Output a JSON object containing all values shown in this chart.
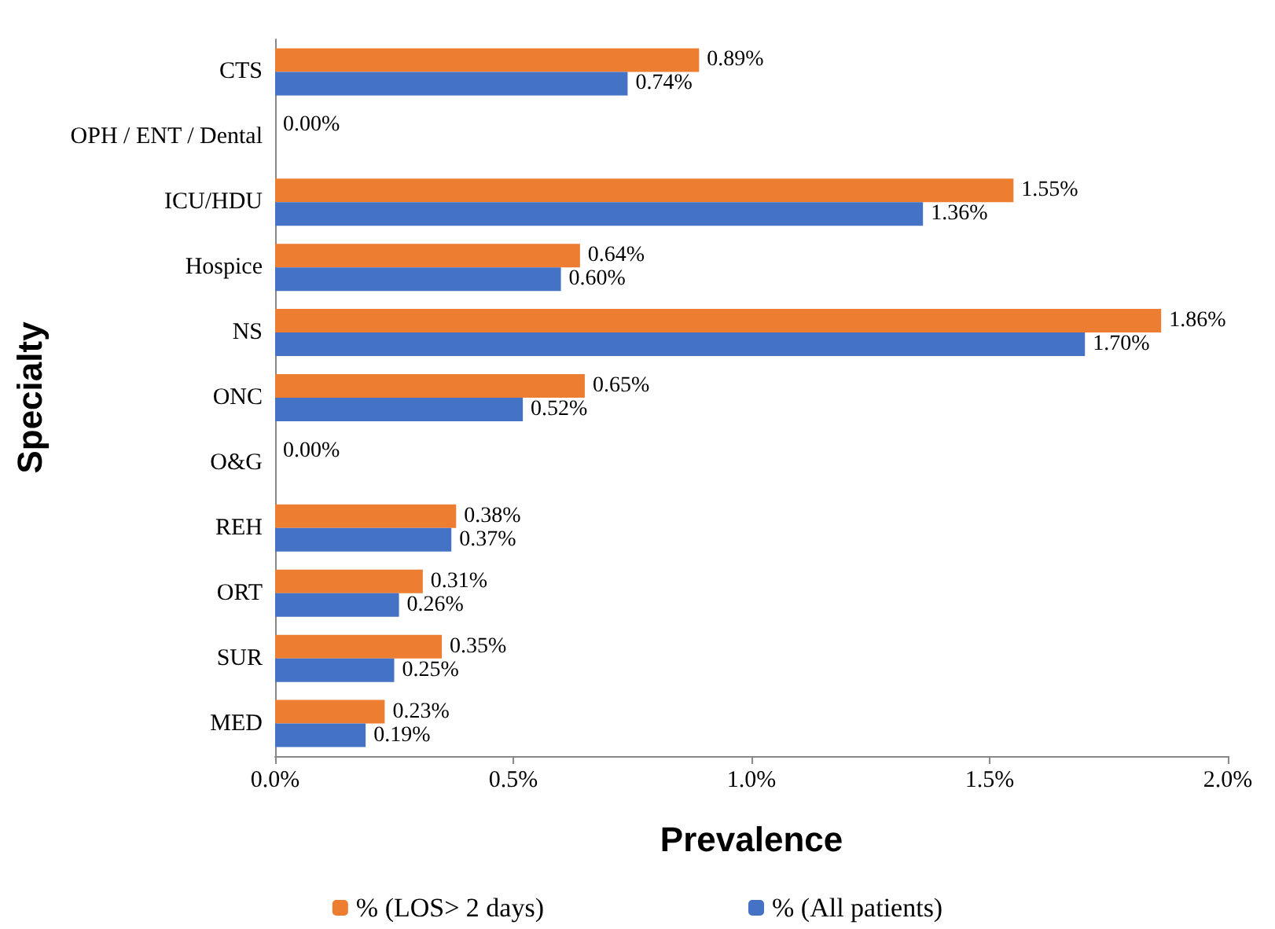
{
  "chart_data": {
    "type": "bar",
    "orientation": "horizontal",
    "xlabel": "Prevalence",
    "ylabel": "Specialty",
    "categories": [
      "CTS",
      "OPH / ENT / Dental",
      "ICU/HDU",
      "Hospice",
      "NS",
      "ONC",
      "O&G",
      "REH",
      "ORT",
      "SUR",
      "MED"
    ],
    "series": [
      {
        "name": "% (LOS> 2 days)",
        "color": "#ed7d31",
        "values": [
          0.89,
          0,
          1.55,
          0.64,
          1.86,
          0.65,
          0,
          0.38,
          0.31,
          0.35,
          0.23
        ],
        "value_labels": [
          "0.89%",
          "0.00%",
          "1.55%",
          "0.64%",
          "1.86%",
          "0.65%",
          "0.00%",
          "0.38%",
          "0.31%",
          "0.35%",
          "0.23%"
        ]
      },
      {
        "name": "% (All patients)",
        "color": "#4472c4",
        "values": [
          0.74,
          0,
          1.36,
          0.6,
          1.7,
          0.52,
          0,
          0.37,
          0.26,
          0.25,
          0.19
        ],
        "value_labels": [
          "0.74%",
          null,
          "1.36%",
          "0.60%",
          "1.70%",
          "0.52%",
          null,
          "0.37%",
          "0.26%",
          "0.25%",
          "0.19%"
        ]
      }
    ],
    "xlim": [
      0,
      2
    ],
    "xticks": [
      {
        "value": 0,
        "label": "0.0%"
      },
      {
        "value": 0.5,
        "label": "0.5%"
      },
      {
        "value": 1,
        "label": "1.0%"
      },
      {
        "value": 1.5,
        "label": "1.5%"
      },
      {
        "value": 2,
        "label": "2.0%"
      }
    ],
    "legend": "bottom",
    "grid": false
  }
}
